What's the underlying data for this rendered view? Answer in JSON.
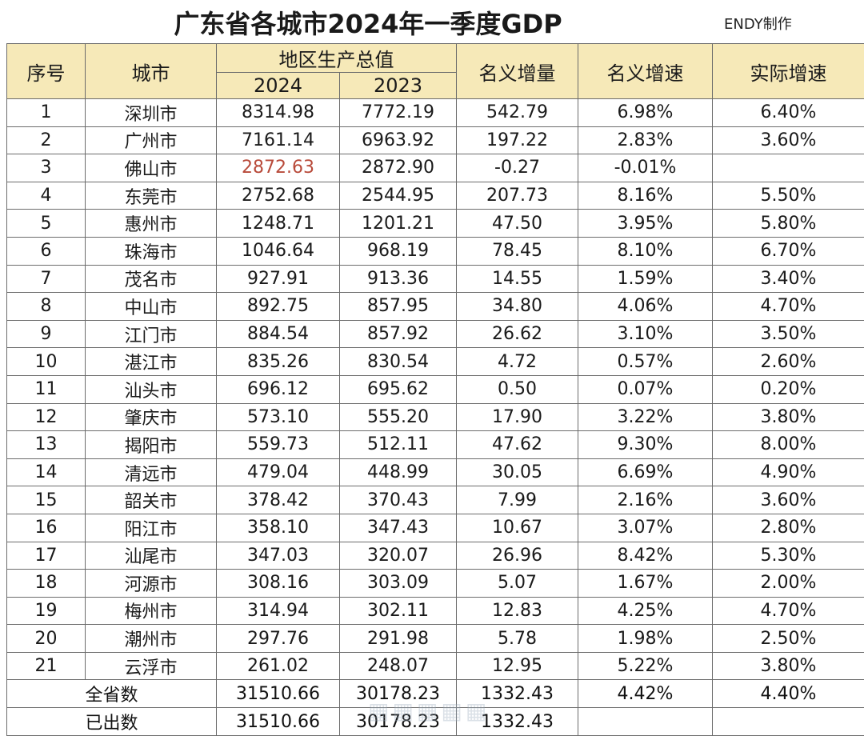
{
  "title": "广东省各城市2024年一季度GDP",
  "credit": "ENDY制作",
  "header": {
    "seq": "序号",
    "city": "城市",
    "gdp_group": "地区生产总值",
    "year_2024": "2024",
    "year_2023": "2023",
    "nominal_increase": "名义增量",
    "nominal_growth": "名义增速",
    "real_growth": "实际增速"
  },
  "rows": [
    {
      "seq": "1",
      "city": "深圳市",
      "v2024": "8314.98",
      "v2023": "7772.19",
      "inc": "542.79",
      "ng": "6.98%",
      "rg": "6.40%"
    },
    {
      "seq": "2",
      "city": "广州市",
      "v2024": "7161.14",
      "v2023": "6963.92",
      "inc": "197.22",
      "ng": "2.83%",
      "rg": "3.60%"
    },
    {
      "seq": "3",
      "city": "佛山市",
      "v2024": "2872.63",
      "v2023": "2872.90",
      "inc": "-0.27",
      "ng": "-0.01%",
      "rg": ""
    },
    {
      "seq": "4",
      "city": "东莞市",
      "v2024": "2752.68",
      "v2023": "2544.95",
      "inc": "207.73",
      "ng": "8.16%",
      "rg": "5.50%"
    },
    {
      "seq": "5",
      "city": "惠州市",
      "v2024": "1248.71",
      "v2023": "1201.21",
      "inc": "47.50",
      "ng": "3.95%",
      "rg": "5.80%"
    },
    {
      "seq": "6",
      "city": "珠海市",
      "v2024": "1046.64",
      "v2023": "968.19",
      "inc": "78.45",
      "ng": "8.10%",
      "rg": "6.70%"
    },
    {
      "seq": "7",
      "city": "茂名市",
      "v2024": "927.91",
      "v2023": "913.36",
      "inc": "14.55",
      "ng": "1.59%",
      "rg": "3.40%"
    },
    {
      "seq": "8",
      "city": "中山市",
      "v2024": "892.75",
      "v2023": "857.95",
      "inc": "34.80",
      "ng": "4.06%",
      "rg": "4.70%"
    },
    {
      "seq": "9",
      "city": "江门市",
      "v2024": "884.54",
      "v2023": "857.92",
      "inc": "26.62",
      "ng": "3.10%",
      "rg": "3.50%"
    },
    {
      "seq": "10",
      "city": "湛江市",
      "v2024": "835.26",
      "v2023": "830.54",
      "inc": "4.72",
      "ng": "0.57%",
      "rg": "2.60%"
    },
    {
      "seq": "11",
      "city": "汕头市",
      "v2024": "696.12",
      "v2023": "695.62",
      "inc": "0.50",
      "ng": "0.07%",
      "rg": "0.20%"
    },
    {
      "seq": "12",
      "city": "肇庆市",
      "v2024": "573.10",
      "v2023": "555.20",
      "inc": "17.90",
      "ng": "3.22%",
      "rg": "3.80%"
    },
    {
      "seq": "13",
      "city": "揭阳市",
      "v2024": "559.73",
      "v2023": "512.11",
      "inc": "47.62",
      "ng": "9.30%",
      "rg": "8.00%"
    },
    {
      "seq": "14",
      "city": "清远市",
      "v2024": "479.04",
      "v2023": "448.99",
      "inc": "30.05",
      "ng": "6.69%",
      "rg": "4.90%"
    },
    {
      "seq": "15",
      "city": "韶关市",
      "v2024": "378.42",
      "v2023": "370.43",
      "inc": "7.99",
      "ng": "2.16%",
      "rg": "3.60%"
    },
    {
      "seq": "16",
      "city": "阳江市",
      "v2024": "358.10",
      "v2023": "347.43",
      "inc": "10.67",
      "ng": "3.07%",
      "rg": "2.80%"
    },
    {
      "seq": "17",
      "city": "汕尾市",
      "v2024": "347.03",
      "v2023": "320.07",
      "inc": "26.96",
      "ng": "8.42%",
      "rg": "5.30%"
    },
    {
      "seq": "18",
      "city": "河源市",
      "v2024": "308.16",
      "v2023": "303.09",
      "inc": "5.07",
      "ng": "1.67%",
      "rg": "2.00%"
    },
    {
      "seq": "19",
      "city": "梅州市",
      "v2024": "314.94",
      "v2023": "302.11",
      "inc": "12.83",
      "ng": "4.25%",
      "rg": "4.70%"
    },
    {
      "seq": "20",
      "city": "潮州市",
      "v2024": "297.76",
      "v2023": "291.98",
      "inc": "5.78",
      "ng": "1.98%",
      "rg": "2.50%"
    },
    {
      "seq": "21",
      "city": "云浮市",
      "v2024": "261.02",
      "v2023": "248.07",
      "inc": "12.95",
      "ng": "5.22%",
      "rg": "3.80%"
    }
  ],
  "totals": [
    {
      "label": "全省数",
      "v2024": "31510.66",
      "v2023": "30178.23",
      "inc": "1332.43",
      "ng": "4.42%",
      "rg": "4.40%"
    },
    {
      "label": "已出数",
      "v2024": "31510.66",
      "v2023": "30178.23",
      "inc": "1332.43",
      "ng": "",
      "rg": ""
    }
  ],
  "highlight_color": "#b84a3a",
  "header_color": "#f6e9b8"
}
